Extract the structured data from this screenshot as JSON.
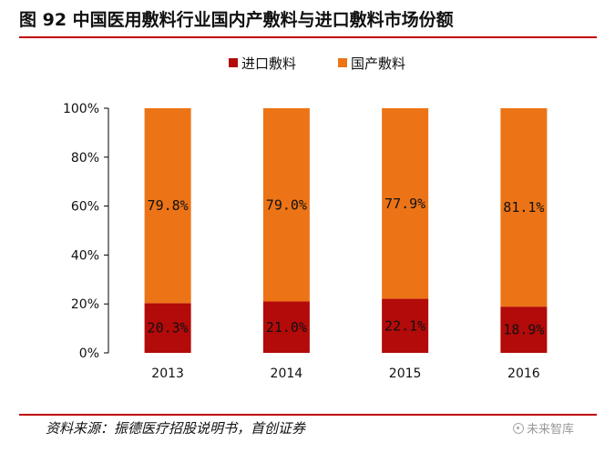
{
  "figure": {
    "title": "图 92 中国医用敷料行业国内产敷料与进口敷料市场份额",
    "source": "资料来源：振德医疗招股说明书，首创证券",
    "watermark": "未来智库"
  },
  "chart_data": {
    "type": "bar",
    "stacked": true,
    "title": "",
    "xlabel": "",
    "ylabel": "",
    "categories": [
      "2013",
      "2014",
      "2015",
      "2016"
    ],
    "series": [
      {
        "name": "进口敷料",
        "color": "#b30a0a",
        "values": [
          20.3,
          21.0,
          22.1,
          18.9
        ],
        "labels": [
          "20.3%",
          "21.0%",
          "22.1%",
          "18.9%"
        ]
      },
      {
        "name": "国产敷料",
        "color": "#ec7417",
        "values": [
          79.8,
          79.0,
          77.9,
          81.1
        ],
        "labels": [
          "79.8%",
          "79.0%",
          "77.9%",
          "81.1%"
        ]
      }
    ],
    "ylim": [
      0,
      100
    ],
    "yticks": [
      0,
      20,
      40,
      60,
      80,
      100
    ],
    "ytick_labels": [
      "0%",
      "20%",
      "40%",
      "60%",
      "80%",
      "100%"
    ],
    "grid": false,
    "legend_position": "top-center"
  }
}
